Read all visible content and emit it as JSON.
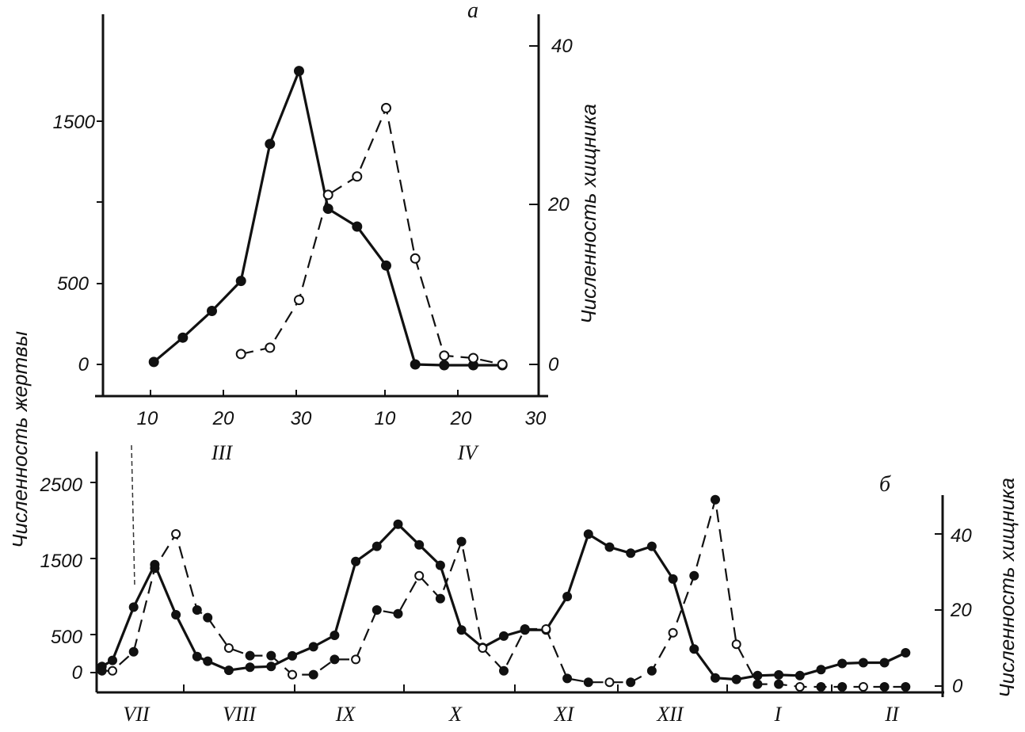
{
  "chart_data": [
    {
      "panel_label": "а",
      "type": "line",
      "ylabel_left": "Численность жертвы",
      "ylabel_right": "Численность хищника",
      "x_tick_labels": [
        "10",
        "20",
        "30",
        "10",
        "20",
        "30"
      ],
      "month_labels": [
        "III",
        "IV"
      ],
      "y_left_ticks": [
        "0",
        "500",
        "1500"
      ],
      "y_right_ticks": [
        "0",
        "20",
        "40"
      ],
      "y_left_range": [
        -200,
        2250
      ],
      "y_right_range": [
        -4,
        45
      ],
      "series": [
        {
          "role": "prey",
          "style": "solid, filled markers",
          "axis": "left",
          "x": [
            7,
            11,
            15,
            19,
            23,
            27,
            31,
            35,
            39,
            43,
            47,
            51,
            55
          ],
          "values": [
            15,
            165,
            330,
            515,
            1360,
            1810,
            960,
            850,
            610,
            0,
            -5,
            -5,
            -5
          ]
        },
        {
          "role": "predator",
          "style": "dashed, open markers",
          "axis": "right",
          "x": [
            19,
            23,
            27,
            31,
            35,
            39,
            43,
            47,
            51,
            55
          ],
          "values": [
            1.3,
            2.1,
            8.1,
            21.3,
            23.6,
            32.2,
            13.3,
            1.1,
            0.8,
            0
          ]
        }
      ]
    },
    {
      "panel_label": "б",
      "type": "line",
      "ylabel_left": "Численность жертвы",
      "ylabel_right": "Численность хищника",
      "month_labels": [
        "VII",
        "VIII",
        "IX",
        "X",
        "XI",
        "XII",
        "I",
        "II"
      ],
      "y_left_ticks": [
        "0",
        "500",
        "1500",
        "2500"
      ],
      "y_right_ticks": [
        "0",
        "20",
        "40"
      ],
      "y_left_range": [
        -200,
        2950
      ],
      "y_right_range": [
        -2.5,
        60
      ],
      "series": [
        {
          "role": "prey",
          "style": "solid, filled markers",
          "axis": "left",
          "x": [
            0.1,
            0.3,
            0.7,
            1.1,
            1.5,
            1.9,
            2.1,
            2.5,
            2.9,
            3.3,
            3.7,
            4.1,
            4.5,
            4.9,
            5.3,
            5.7,
            6.1,
            6.5,
            6.9,
            7.3,
            7.7,
            8.1,
            8.5,
            8.9,
            9.3,
            9.7,
            10.1,
            10.5,
            10.9,
            11.3,
            11.7,
            12.1,
            12.5,
            12.9,
            13.3,
            13.7,
            14.1,
            14.5,
            14.9,
            15.3
          ],
          "values": [
            80,
            160,
            860,
            1420,
            760,
            210,
            150,
            30,
            70,
            80,
            220,
            340,
            490,
            1460,
            1660,
            1950,
            1680,
            1410,
            560,
            330,
            480,
            560,
            560,
            1000,
            1820,
            1650,
            1570,
            1660,
            1230,
            310,
            -70,
            -90,
            -40,
            -30,
            -40,
            40,
            120,
            130,
            130,
            260
          ]
        },
        {
          "role": "predator",
          "style": "dashed, mixed markers",
          "axis": "right",
          "x": [
            0.1,
            0.3,
            0.7,
            1.1,
            1.5,
            1.9,
            2.1,
            2.5,
            2.9,
            3.3,
            3.7,
            4.1,
            4.5,
            4.9,
            5.3,
            5.7,
            6.1,
            6.5,
            6.9,
            7.3,
            7.7,
            8.1,
            8.5,
            8.9,
            9.3,
            9.7,
            10.1,
            10.5,
            10.9,
            11.3,
            11.7,
            12.1,
            12.5,
            12.9,
            13.3,
            13.7,
            14.1,
            14.5,
            14.9,
            15.3
          ],
          "values": [
            4,
            4,
            9,
            31,
            40,
            20,
            18,
            10,
            8,
            8,
            3,
            3,
            7,
            7,
            20,
            19,
            29,
            23,
            38,
            10,
            4,
            15,
            15,
            2,
            1,
            1,
            1,
            4,
            14,
            29,
            49,
            11,
            0.5,
            0.5,
            -0.2,
            -0.2,
            -0.2,
            -0.2,
            -0.2,
            -0.2
          ]
        }
      ]
    }
  ]
}
